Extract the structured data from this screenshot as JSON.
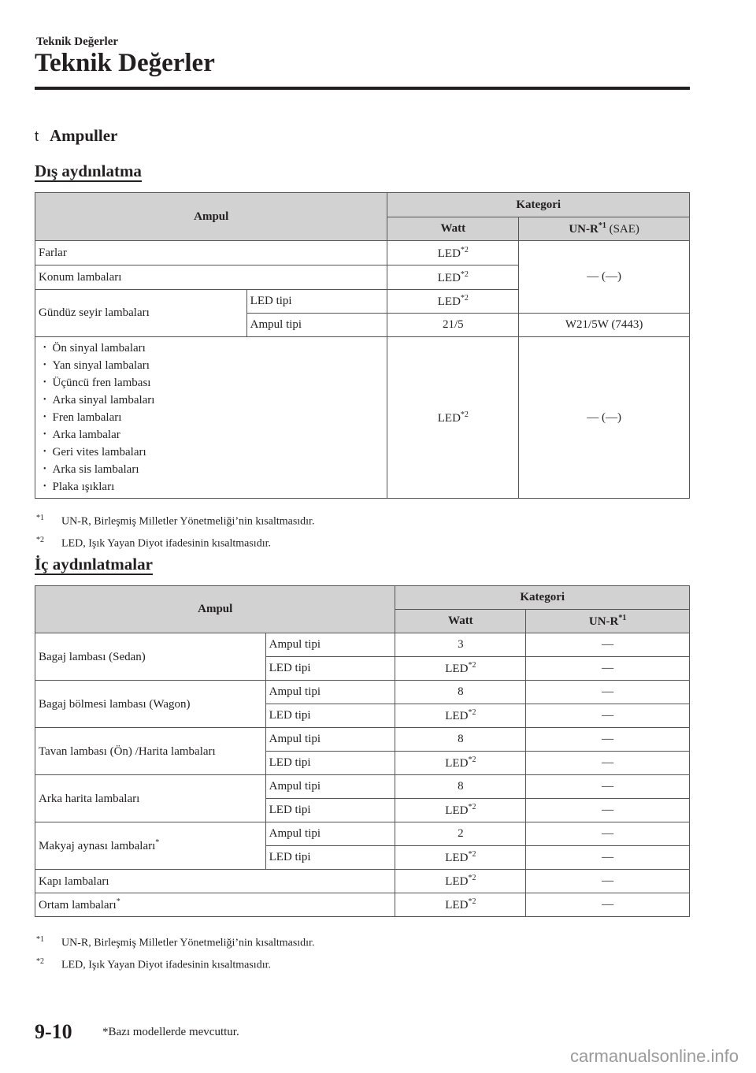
{
  "running_header": "Teknik Değerler",
  "title": "Teknik Değerler",
  "section": {
    "marker": "t",
    "title": "Ampuller"
  },
  "exterior": {
    "heading": "Dış aydınlatma",
    "headers": {
      "ampul": "Ampul",
      "kategori": "Kategori",
      "watt": "Watt",
      "unr": "UN-R",
      "unr_sup": "*1",
      "unr_suffix": " (SAE)"
    },
    "led": "LED",
    "led_sup": "*2",
    "dash": "— (—)",
    "rows": {
      "farlar": "Farlar",
      "konum": "Konum lambaları",
      "gunduz": "Gündüz seyir lambaları",
      "led_tipi": "LED tipi",
      "ampul_tipi": "Ampul tipi",
      "watt_ampul": "21/5",
      "unr_ampul": "W21/5W (7443)"
    },
    "bullets": [
      "Ön sinyal lambaları",
      "Yan sinyal lambaları",
      "Üçüncü fren lambası",
      "Arka sinyal lambaları",
      "Fren lambaları",
      "Arka lambalar",
      "Geri vites lambaları",
      "Arka sis lambaları",
      "Plaka ışıkları"
    ],
    "footnotes": [
      {
        "mark": "*1",
        "text": "UN-R, Birleşmiş Milletler Yönetmeliği’nin kısaltmasıdır."
      },
      {
        "mark": "*2",
        "text": "LED, Işık Yayan Diyot ifadesinin kısaltmasıdır."
      }
    ]
  },
  "interior": {
    "heading": "İç aydınlatmalar",
    "headers": {
      "ampul": "Ampul",
      "kategori": "Kategori",
      "watt": "Watt",
      "unr": "UN-R",
      "unr_sup": "*1"
    },
    "ampul_tipi": "Ampul tipi",
    "led_tipi": "LED tipi",
    "led": "LED",
    "led_sup": "*2",
    "dash": "—",
    "groups": [
      {
        "name": "Bagaj lambası (Sedan)",
        "star": "",
        "watt": "3"
      },
      {
        "name": "Bagaj bölmesi lambası (Wagon)",
        "star": "",
        "watt": "8"
      },
      {
        "name": "Tavan lambası (Ön) /Harita lambaları",
        "star": "",
        "watt": "8"
      },
      {
        "name": "Arka harita lambaları",
        "star": "",
        "watt": "8"
      },
      {
        "name": "Makyaj aynası lambaları",
        "star": "*",
        "watt": "2"
      }
    ],
    "single": [
      {
        "name": "Kapı lambaları",
        "star": ""
      },
      {
        "name": "Ortam lambaları",
        "star": "*"
      }
    ],
    "footnotes": [
      {
        "mark": "*1",
        "text": "UN-R, Birleşmiş Milletler Yönetmeliği’nin kısaltmasıdır."
      },
      {
        "mark": "*2",
        "text": "LED, Işık Yayan Diyot ifadesinin kısaltmasıdır."
      }
    ]
  },
  "page_number": "9-10",
  "availability_note": "*Bazı modellerde mevcuttur.",
  "watermark": "carmanualsonline.info"
}
